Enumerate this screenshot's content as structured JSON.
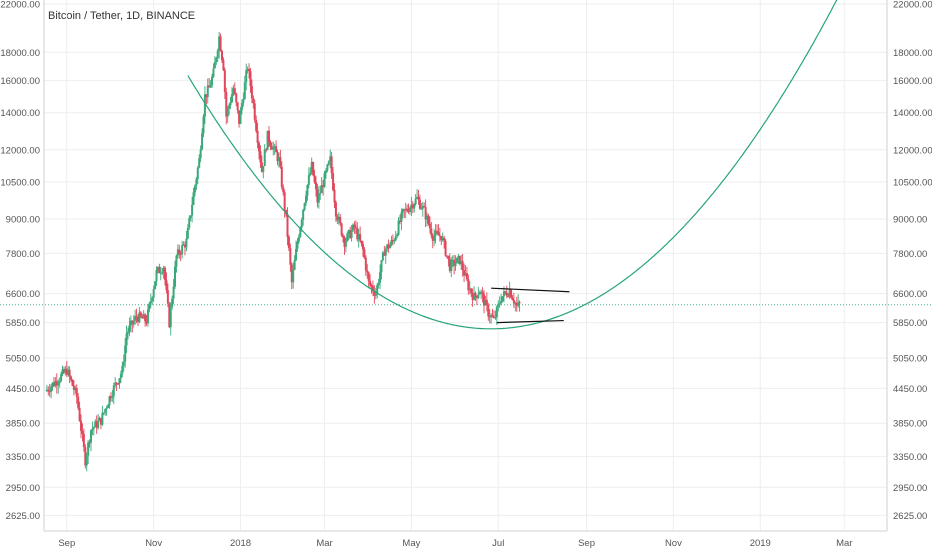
{
  "header": {
    "symbol_title": "Bitcoin / Tether, 1D, BINANCE"
  },
  "colors": {
    "up": "#3aa87a",
    "down": "#e0475b",
    "arc": "#26a578",
    "trendline": "#111111",
    "grid": "#eeeeee",
    "axis_text": "#555555",
    "price_line": "#4caf85",
    "background": "#ffffff"
  },
  "chart_data": {
    "type": "candlestick",
    "title": "Bitcoin / Tether, 1D, BINANCE",
    "y_scale": "log",
    "ylim": [
      2500,
      22000
    ],
    "y_ticks": [
      2625,
      2950,
      3350,
      3850,
      4450,
      5050,
      5850,
      6600,
      7800,
      9000,
      10500,
      12000,
      14000,
      16000,
      18000,
      22000
    ],
    "y_tick_labels": [
      "2625.00",
      "2950.00",
      "3350.00",
      "3850.00",
      "4450.00",
      "5050.00",
      "5850.00",
      "6600.00",
      "7800.00",
      "9000.00",
      "10500.00",
      "12000.00",
      "14000.00",
      "16000.00",
      "18000.00",
      "22000.00"
    ],
    "x_range": [
      "2017-09-01",
      "2019-03-31"
    ],
    "x_ticks": [
      {
        "date": "2017-09-01",
        "label": "Sep"
      },
      {
        "date": "2017-11-01",
        "label": "Nov"
      },
      {
        "date": "2018-01-01",
        "label": "2018"
      },
      {
        "date": "2018-03-01",
        "label": "Mar"
      },
      {
        "date": "2018-05-01",
        "label": "May"
      },
      {
        "date": "2018-07-01",
        "label": "Jul"
      },
      {
        "date": "2018-09-01",
        "label": "Sep"
      },
      {
        "date": "2018-11-01",
        "label": "Nov"
      },
      {
        "date": "2019-01-01",
        "label": "2019"
      },
      {
        "date": "2019-03-01",
        "label": "Mar"
      }
    ],
    "grid": true,
    "current_price_line": 6300,
    "close_path": [
      [
        "2017-08-17",
        4400
      ],
      [
        "2017-08-25",
        4600
      ],
      [
        "2017-09-01",
        4800
      ],
      [
        "2017-09-08",
        4300
      ],
      [
        "2017-09-14",
        3300
      ],
      [
        "2017-09-18",
        3750
      ],
      [
        "2017-09-25",
        3900
      ],
      [
        "2017-10-02",
        4350
      ],
      [
        "2017-10-10",
        4800
      ],
      [
        "2017-10-13",
        5600
      ],
      [
        "2017-10-20",
        6000
      ],
      [
        "2017-10-27",
        5900
      ],
      [
        "2017-11-03",
        7200
      ],
      [
        "2017-11-08",
        7400
      ],
      [
        "2017-11-12",
        5850
      ],
      [
        "2017-11-17",
        7700
      ],
      [
        "2017-11-24",
        8200
      ],
      [
        "2017-11-29",
        10000
      ],
      [
        "2017-12-03",
        11500
      ],
      [
        "2017-12-07",
        15000
      ],
      [
        "2017-12-10",
        15500
      ],
      [
        "2017-12-13",
        16500
      ],
      [
        "2017-12-17",
        19200
      ],
      [
        "2017-12-20",
        17000
      ],
      [
        "2017-12-22",
        13800
      ],
      [
        "2017-12-27",
        15500
      ],
      [
        "2017-12-31",
        13500
      ],
      [
        "2018-01-06",
        17000
      ],
      [
        "2018-01-10",
        14500
      ],
      [
        "2018-01-16",
        11000
      ],
      [
        "2018-01-20",
        12700
      ],
      [
        "2018-01-28",
        11500
      ],
      [
        "2018-02-02",
        9000
      ],
      [
        "2018-02-06",
        6900
      ],
      [
        "2018-02-10",
        8200
      ],
      [
        "2018-02-16",
        10100
      ],
      [
        "2018-02-20",
        11200
      ],
      [
        "2018-02-24",
        9700
      ],
      [
        "2018-03-05",
        11500
      ],
      [
        "2018-03-09",
        9300
      ],
      [
        "2018-03-15",
        8200
      ],
      [
        "2018-03-22",
        8700
      ],
      [
        "2018-03-28",
        7900
      ],
      [
        "2018-04-01",
        6900
      ],
      [
        "2018-04-06",
        6600
      ],
      [
        "2018-04-12",
        7900
      ],
      [
        "2018-04-18",
        8200
      ],
      [
        "2018-04-25",
        9200
      ],
      [
        "2018-05-05",
        9800
      ],
      [
        "2018-05-10",
        9300
      ],
      [
        "2018-05-16",
        8400
      ],
      [
        "2018-05-22",
        8400
      ],
      [
        "2018-05-28",
        7400
      ],
      [
        "2018-06-04",
        7600
      ],
      [
        "2018-06-10",
        6800
      ],
      [
        "2018-06-14",
        6500
      ],
      [
        "2018-06-18",
        6700
      ],
      [
        "2018-06-24",
        6100
      ],
      [
        "2018-06-28",
        5900
      ],
      [
        "2018-07-03",
        6500
      ],
      [
        "2018-07-09",
        6700
      ],
      [
        "2018-07-14",
        6250
      ],
      [
        "2018-07-16",
        6300
      ]
    ],
    "annotations": {
      "arc": {
        "x_start": "2017-11-25",
        "x_min": "2018-06-26",
        "x_end": "2019-02-25",
        "y_start": 18000,
        "y_min": 5700,
        "y_end": 20000
      },
      "upper_trendline": {
        "from": [
          "2018-06-26",
          6750
        ],
        "to": [
          "2018-08-20",
          6650
        ]
      },
      "lower_trendline": {
        "from": [
          "2018-06-30",
          5850
        ],
        "to": [
          "2018-08-16",
          5900
        ]
      }
    }
  }
}
